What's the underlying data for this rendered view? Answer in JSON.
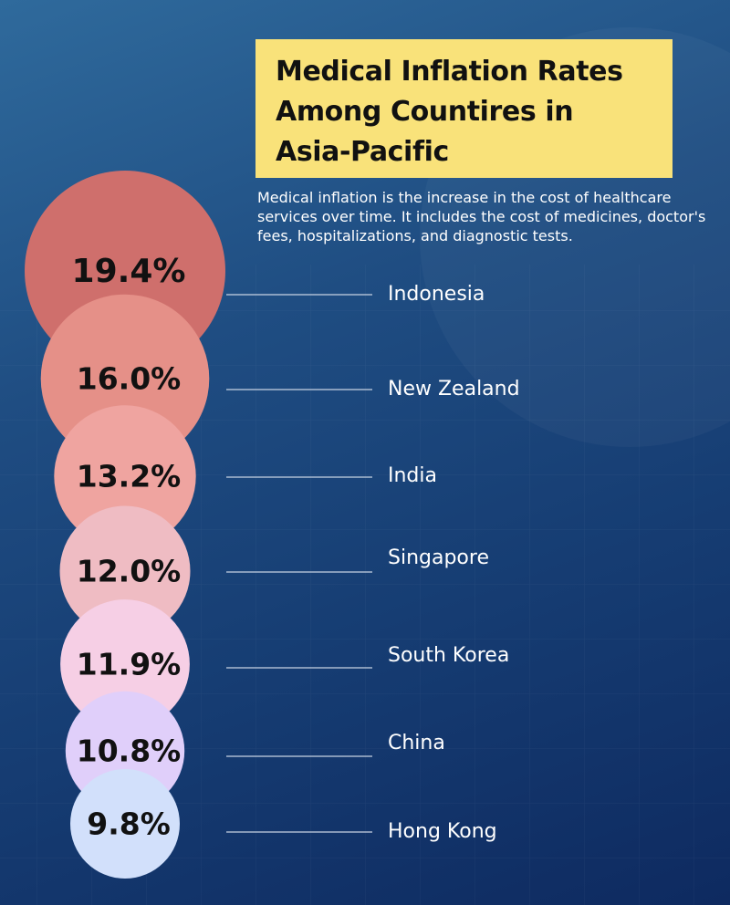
{
  "title": "Medical Inflation Rates Among Countires in Asia-Pacific",
  "subtitle": "Medical inflation is the increase in the cost of healthcare services over time. It includes the cost of medicines, doctor's fees, hospitalizations, and diagnostic tests.",
  "colors": {
    "title_bg": "#f9e27a",
    "connector": "#c8d3e3",
    "bubbles": [
      "#cf6f6c",
      "#e59088",
      "#efa4a0",
      "#efbcc3",
      "#f6cfe5",
      "#e0cffa",
      "#d2e0fb"
    ]
  },
  "chart_data": {
    "type": "bubble",
    "title": "Medical Inflation Rates Among Countires in Asia-Pacific",
    "unit": "%",
    "categories": [
      "Indonesia",
      "New Zealand",
      "India",
      "Singapore",
      "South Korea",
      "China",
      "Hong Kong"
    ],
    "values": [
      19.4,
      16.0,
      13.2,
      12.0,
      11.9,
      10.8,
      9.8
    ],
    "labels": [
      "19.4%",
      "16.0%",
      "13.2%",
      "12.0%",
      "11.9%",
      "10.8%",
      "9.8%"
    ]
  }
}
